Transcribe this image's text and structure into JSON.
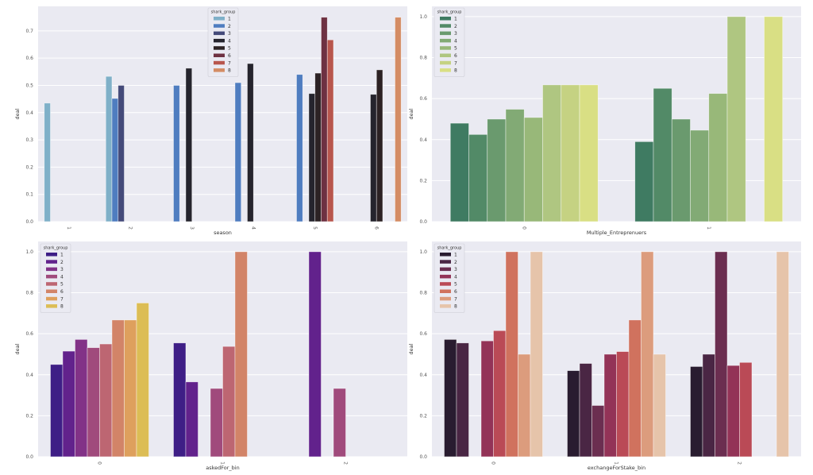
{
  "chart_data": [
    {
      "type": "bar",
      "title": "",
      "xlabel": "season",
      "ylabel": "deal",
      "ylim": [
        0,
        0.79
      ],
      "yticks": [
        "0.0",
        "0.1",
        "0.2",
        "0.3",
        "0.4",
        "0.5",
        "0.6",
        "0.7"
      ],
      "ytick_values": [
        0,
        0.1,
        0.2,
        0.3,
        0.4,
        0.5,
        0.6,
        0.7
      ],
      "categories": [
        "1",
        "2",
        "3",
        "4",
        "5",
        "6"
      ],
      "grid": true,
      "legend": {
        "title": "shark_group",
        "placement": "top-right"
      },
      "series": [
        {
          "name": "1",
          "color": "#7fb0c8",
          "values": [
            0.435,
            0.533,
            null,
            null,
            null,
            null
          ]
        },
        {
          "name": "2",
          "color": "#4f7dc0",
          "values": [
            null,
            0.452,
            0.5,
            0.51,
            0.54,
            null
          ]
        },
        {
          "name": "3",
          "color": "#444a7a",
          "values": [
            null,
            0.5,
            null,
            null,
            null,
            null
          ]
        },
        {
          "name": "4",
          "color": "#25242d",
          "values": [
            null,
            null,
            0.563,
            0.58,
            0.47,
            0.467
          ]
        },
        {
          "name": "5",
          "color": "#2c2224",
          "values": [
            null,
            null,
            null,
            null,
            0.545,
            0.557
          ]
        },
        {
          "name": "6",
          "color": "#6e3142",
          "values": [
            null,
            null,
            null,
            null,
            0.75,
            null
          ]
        },
        {
          "name": "7",
          "color": "#b8564d",
          "values": [
            null,
            null,
            null,
            null,
            0.667,
            null
          ]
        },
        {
          "name": "8",
          "color": "#d48c64",
          "values": [
            null,
            null,
            null,
            null,
            null,
            0.75
          ]
        }
      ]
    },
    {
      "type": "bar",
      "title": "",
      "xlabel": "Multiple_Entreprenuers",
      "ylabel": "deal",
      "ylim": [
        0,
        1.05
      ],
      "yticks": [
        "0.0",
        "0.2",
        "0.4",
        "0.6",
        "0.8",
        "1.0"
      ],
      "ytick_values": [
        0,
        0.2,
        0.4,
        0.6,
        0.8,
        1.0
      ],
      "categories": [
        "0",
        "1"
      ],
      "grid": true,
      "legend": {
        "title": "shark_group",
        "placement": "top-left"
      },
      "series": [
        {
          "name": "1",
          "color": "#3f7b62",
          "values": [
            0.48,
            0.39
          ]
        },
        {
          "name": "2",
          "color": "#528a67",
          "values": [
            0.425,
            0.65
          ]
        },
        {
          "name": "3",
          "color": "#6a9a6e",
          "values": [
            0.5,
            0.5
          ]
        },
        {
          "name": "4",
          "color": "#82aa75",
          "values": [
            0.548,
            0.446
          ]
        },
        {
          "name": "5",
          "color": "#98b879",
          "values": [
            0.508,
            0.625
          ]
        },
        {
          "name": "6",
          "color": "#afc681",
          "values": [
            0.667,
            1.0
          ]
        },
        {
          "name": "7",
          "color": "#c5d282",
          "values": [
            0.667,
            null
          ]
        },
        {
          "name": "8",
          "color": "#d9df84",
          "values": [
            0.667,
            1.0
          ]
        }
      ]
    },
    {
      "type": "bar",
      "title": "",
      "xlabel": "askedFor_bin",
      "ylabel": "deal",
      "ylim": [
        0,
        1.05
      ],
      "yticks": [
        "0.0",
        "0.2",
        "0.4",
        "0.6",
        "0.8",
        "1.0"
      ],
      "ytick_values": [
        0,
        0.2,
        0.4,
        0.6,
        0.8,
        1.0
      ],
      "categories": [
        "0",
        "1",
        "2"
      ],
      "grid": true,
      "legend": {
        "title": "shark_group",
        "placement": "top-left"
      },
      "series": [
        {
          "name": "1",
          "color": "#3e1e86",
          "values": [
            0.45,
            0.555,
            null
          ]
        },
        {
          "name": "2",
          "color": "#62228c",
          "values": [
            0.515,
            0.365,
            1.0
          ]
        },
        {
          "name": "3",
          "color": "#823287",
          "values": [
            0.572,
            null,
            null
          ]
        },
        {
          "name": "4",
          "color": "#a04a7c",
          "values": [
            0.532,
            0.333,
            0.333
          ]
        },
        {
          "name": "5",
          "color": "#bd6672",
          "values": [
            0.55,
            0.538,
            null
          ]
        },
        {
          "name": "6",
          "color": "#d28468",
          "values": [
            0.667,
            1.0,
            null
          ]
        },
        {
          "name": "7",
          "color": "#dea05d",
          "values": [
            0.667,
            null,
            null
          ]
        },
        {
          "name": "8",
          "color": "#dcbd55",
          "values": [
            0.75,
            null,
            null
          ]
        }
      ]
    },
    {
      "type": "bar",
      "title": "",
      "xlabel": "exchangeForStake_bin",
      "ylabel": "deal",
      "ylim": [
        0,
        1.05
      ],
      "yticks": [
        "0.0",
        "0.2",
        "0.4",
        "0.6",
        "0.8",
        "1.0"
      ],
      "ytick_values": [
        0,
        0.2,
        0.4,
        0.6,
        0.8,
        1.0
      ],
      "categories": [
        "0",
        "1",
        "2"
      ],
      "grid": true,
      "legend": {
        "title": "shark_group",
        "placement": "top-left"
      },
      "series": [
        {
          "name": "1",
          "color": "#291c30",
          "values": [
            0.572,
            0.42,
            0.44
          ]
        },
        {
          "name": "2",
          "color": "#4a2644",
          "values": [
            0.555,
            0.455,
            0.5
          ]
        },
        {
          "name": "3",
          "color": "#6b2e50",
          "values": [
            null,
            0.25,
            1.0
          ]
        },
        {
          "name": "4",
          "color": "#933357",
          "values": [
            0.565,
            0.5,
            0.445
          ]
        },
        {
          "name": "5",
          "color": "#ba4a56",
          "values": [
            0.615,
            0.513,
            0.46
          ]
        },
        {
          "name": "6",
          "color": "#d0725e",
          "values": [
            1.0,
            0.667,
            null
          ]
        },
        {
          "name": "7",
          "color": "#dc9c7d",
          "values": [
            0.5,
            1.0,
            null
          ]
        },
        {
          "name": "8",
          "color": "#e6c4aa",
          "values": [
            1.0,
            0.5,
            1.0
          ]
        }
      ]
    }
  ]
}
